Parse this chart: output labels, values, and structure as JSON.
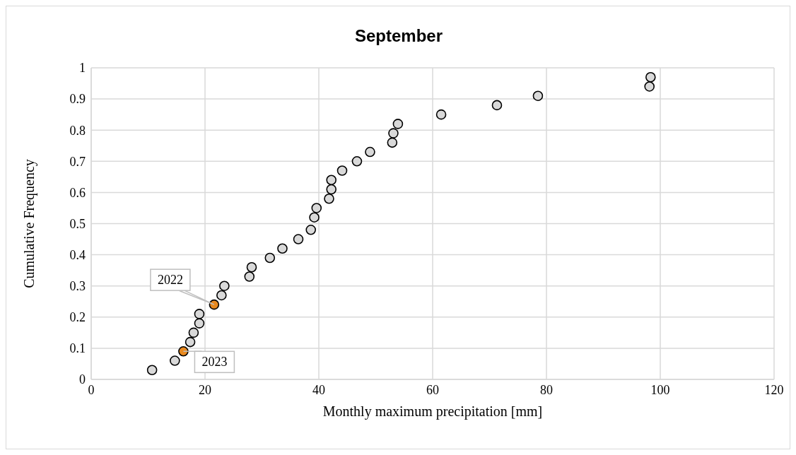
{
  "chart_data": {
    "type": "scatter",
    "title": "September",
    "xlabel": "Monthly maximum precipitation [mm]",
    "ylabel": "Cumulative Frequency",
    "series": [
      {
        "color": "#d9d9d9",
        "x": [
          10.7,
          14.7,
          17.4,
          18.0,
          19.0,
          19.0,
          22.9,
          23.4,
          27.8,
          28.2,
          31.4,
          33.6,
          36.4,
          38.6,
          39.2,
          39.6,
          41.8,
          42.2,
          42.2,
          44.1,
          46.7,
          49.0,
          52.9,
          53.1,
          53.9,
          61.5,
          71.3,
          78.5,
          98.1,
          98.3
        ],
        "values": [
          0.03,
          0.06,
          0.12,
          0.15,
          0.18,
          0.21,
          0.27,
          0.3,
          0.33,
          0.36,
          0.39,
          0.42,
          0.45,
          0.48,
          0.52,
          0.55,
          0.58,
          0.61,
          0.64,
          0.67,
          0.7,
          0.73,
          0.76,
          0.79,
          0.82,
          0.85,
          0.88,
          0.91,
          0.94,
          0.97
        ]
      },
      {
        "color": "#e8891f",
        "x": [
          16.2,
          21.6
        ],
        "values": [
          0.09,
          0.24
        ]
      }
    ],
    "annotations": [
      {
        "text": "2022",
        "x": 21.6,
        "y": 0.24
      },
      {
        "text": "2023",
        "x": 16.2,
        "y": 0.09
      }
    ],
    "xlim": [
      0,
      120
    ],
    "xticks": [
      0,
      20,
      40,
      60,
      80,
      100,
      120
    ],
    "ylim": [
      0,
      1
    ],
    "yticks": [
      0,
      0.1,
      0.2,
      0.3,
      0.4,
      0.5,
      0.6,
      0.7,
      0.8,
      0.9,
      1
    ],
    "grid": true,
    "legend": false,
    "marker": "circle"
  }
}
